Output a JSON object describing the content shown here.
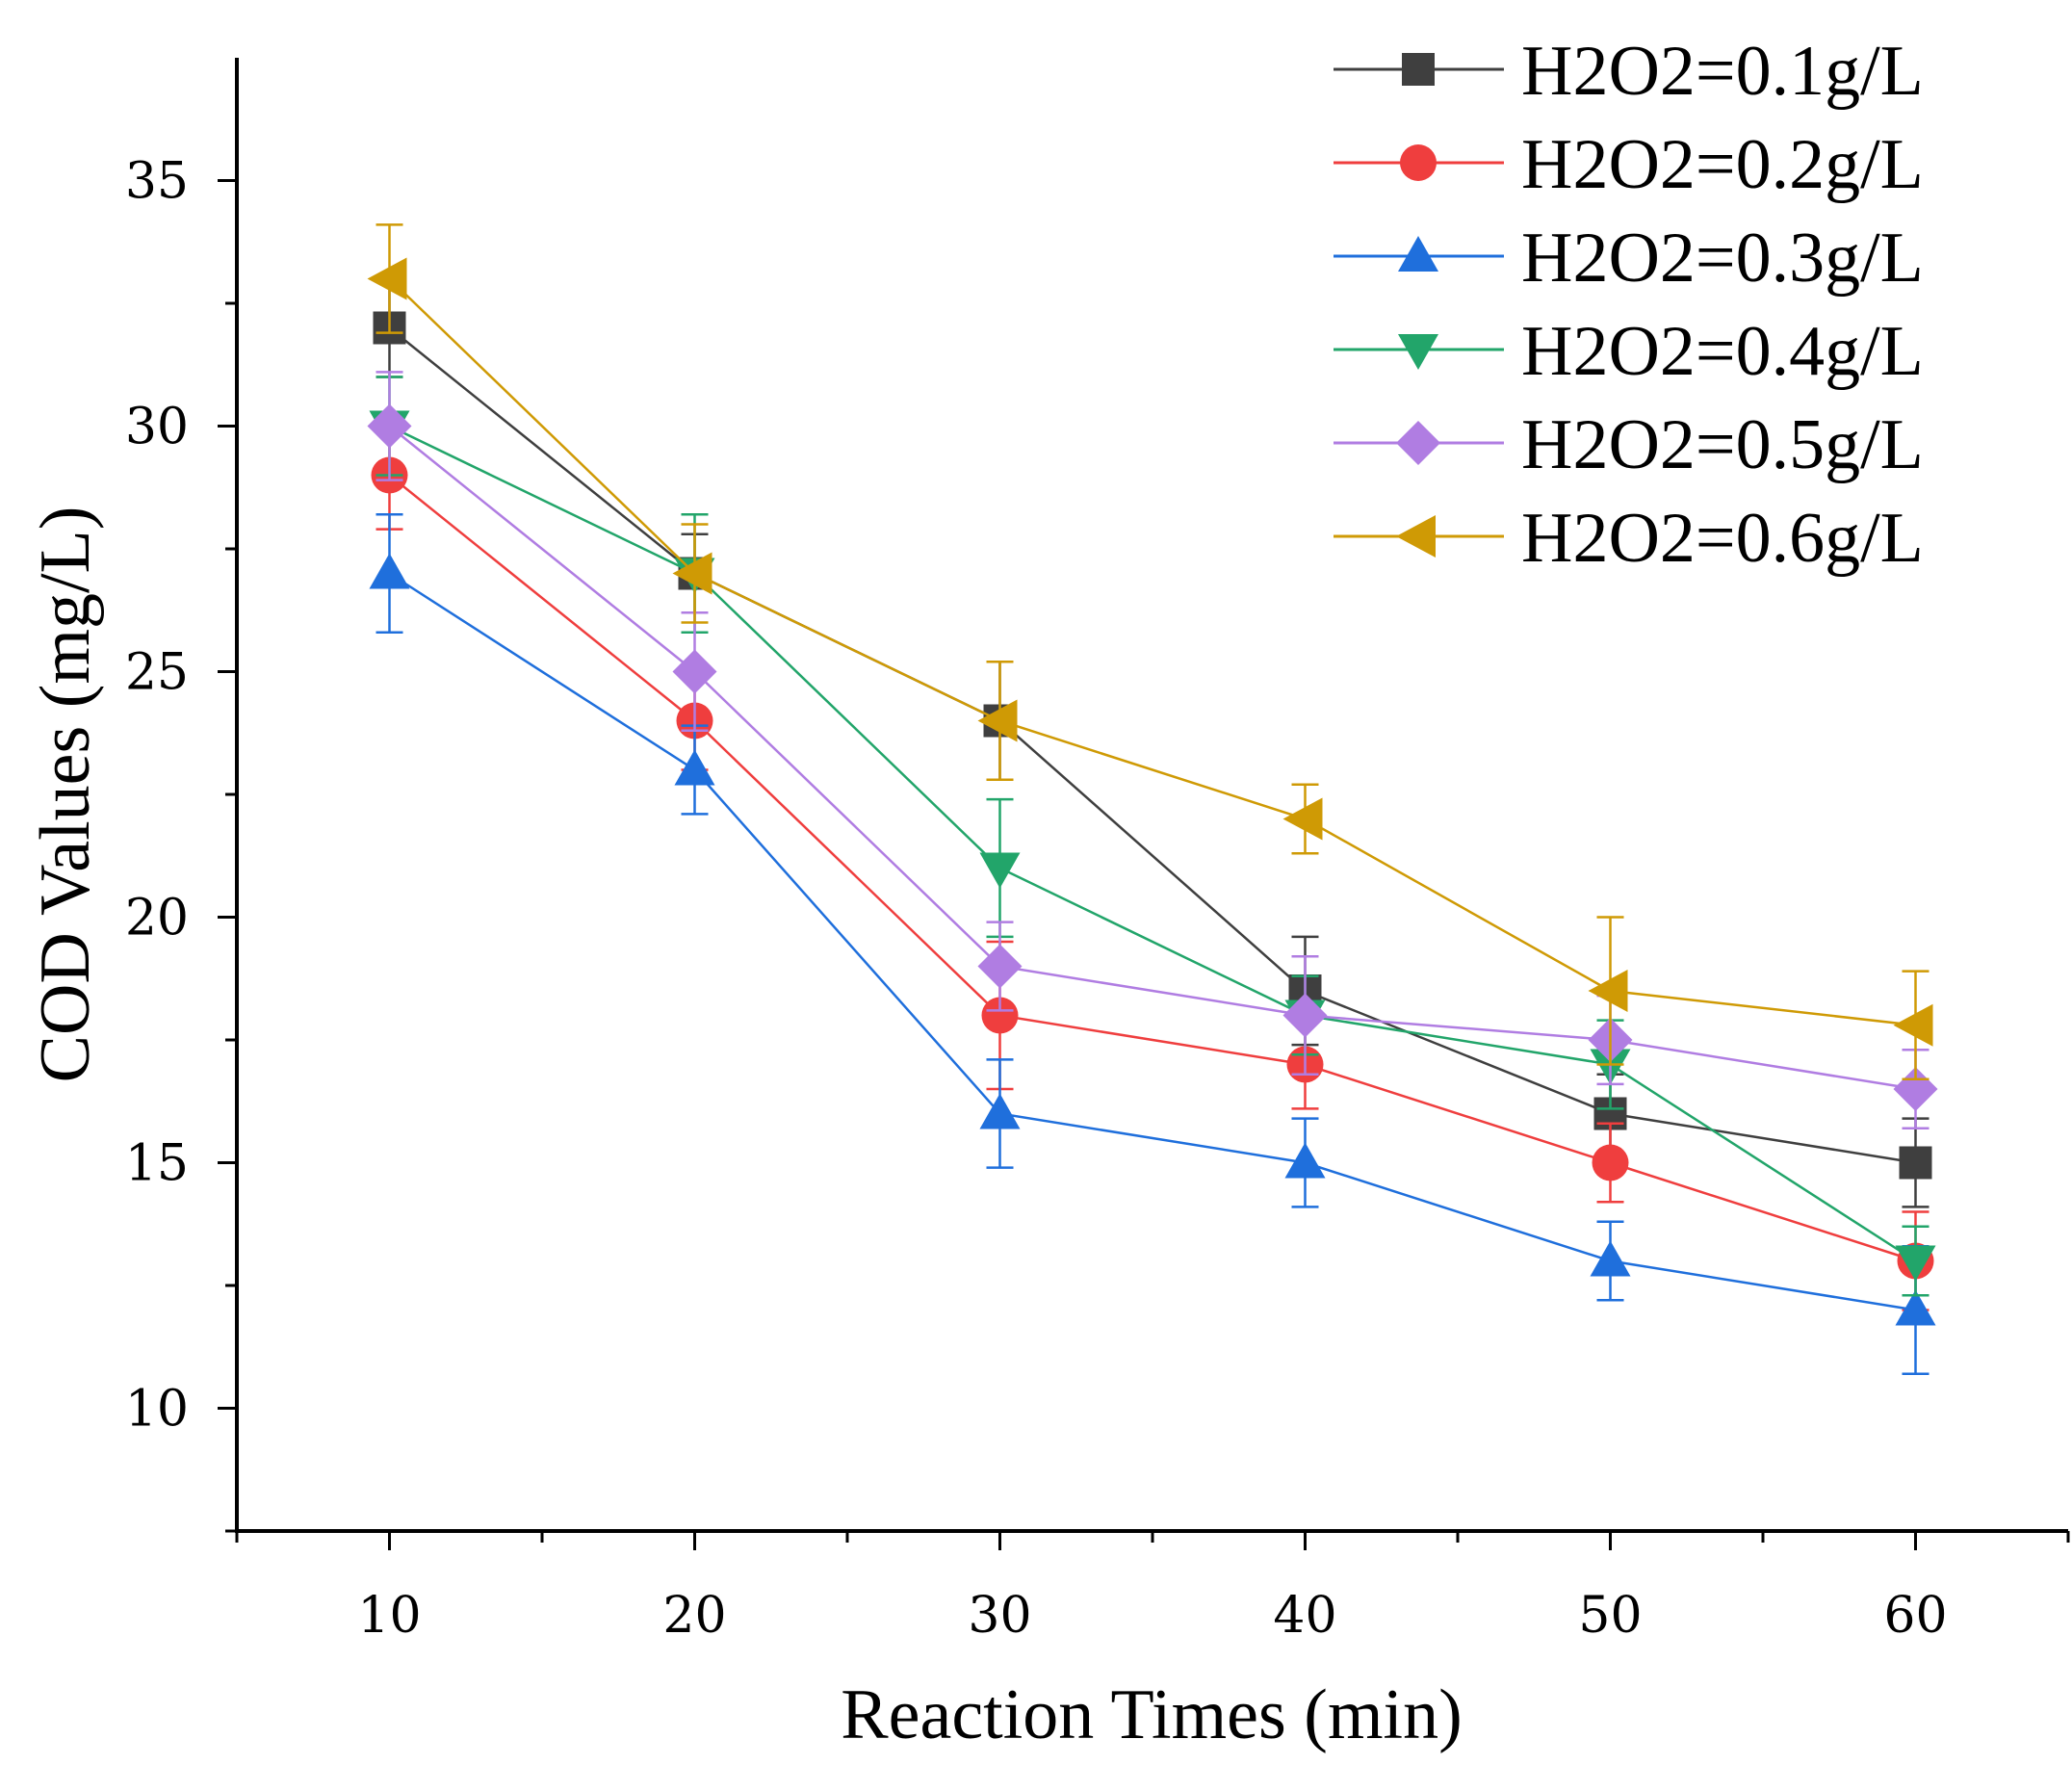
{
  "chart_data": {
    "type": "line",
    "xlabel": "Reaction Times (min)",
    "ylabel": "COD Values (mg/L)",
    "xlim": [
      5,
      65
    ],
    "ylim": [
      7.5,
      37.5
    ],
    "xticks": [
      10,
      20,
      30,
      40,
      50,
      60
    ],
    "yticks": [
      10,
      15,
      20,
      25,
      30,
      35
    ],
    "x": [
      10,
      20,
      30,
      40,
      50,
      60
    ],
    "legend_position": "top-right",
    "series": [
      {
        "name": "H2O2=0.1g/L",
        "color": "#3f3f3f",
        "marker": "square",
        "values": [
          32,
          27,
          24,
          18.5,
          16,
          15
        ],
        "errors": [
          1.0,
          0.8,
          1.2,
          1.1,
          0.8,
          0.9
        ]
      },
      {
        "name": "H2O2=0.2g/L",
        "color": "#ef3e3e",
        "marker": "circle",
        "values": [
          29,
          24,
          18,
          17,
          15,
          13
        ],
        "errors": [
          1.1,
          1.0,
          1.5,
          0.9,
          0.8,
          1.0
        ]
      },
      {
        "name": "H2O2=0.3g/L",
        "color": "#1f6fdc",
        "marker": "triangle-up",
        "values": [
          27,
          23,
          16,
          15,
          13,
          12
        ],
        "errors": [
          1.2,
          0.9,
          1.1,
          0.9,
          0.8,
          1.3
        ]
      },
      {
        "name": "H2O2=0.4g/L",
        "color": "#22a56a",
        "marker": "triangle-down",
        "values": [
          30,
          27,
          21,
          18,
          17,
          13
        ],
        "errors": [
          1.0,
          1.2,
          1.4,
          0.8,
          0.9,
          0.7
        ]
      },
      {
        "name": "H2O2=0.5g/L",
        "color": "#b07de2",
        "marker": "diamond",
        "values": [
          30,
          25,
          19,
          18,
          17.5,
          16.5
        ],
        "errors": [
          1.1,
          1.2,
          0.9,
          1.2,
          0.9,
          0.8
        ]
      },
      {
        "name": "H2O2=0.6g/L",
        "color": "#cf9a05",
        "marker": "triangle-left",
        "values": [
          33,
          27,
          24,
          22,
          18.5,
          17.8
        ],
        "errors": [
          1.1,
          1.0,
          1.2,
          0.7,
          1.5,
          1.1
        ]
      }
    ]
  }
}
